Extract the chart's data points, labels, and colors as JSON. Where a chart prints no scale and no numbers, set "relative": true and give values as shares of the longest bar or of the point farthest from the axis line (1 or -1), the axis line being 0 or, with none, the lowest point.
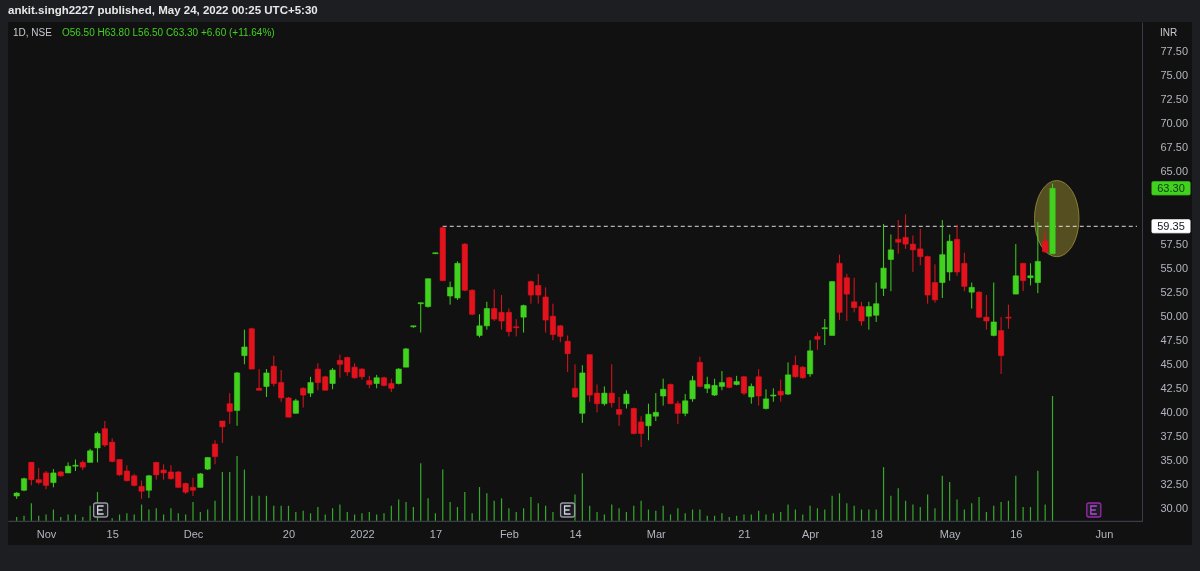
{
  "chart_data": [
    {
      "type": "candlestick",
      "title": "ankit.singh2227 published, May 24, 2022 00:25 UTC+5:30",
      "subtitle": "1D, NSE",
      "ylabel": "INR",
      "annotations": [
        "O56.50 H63.80 L56.50 C63.30 +6.60 (+11.64%)",
        "63.30"
      ],
      "categories": [
        null,
        null,
        null,
        null,
        "Nov",
        null,
        null,
        null,
        null,
        null,
        null,
        null,
        null,
        "15",
        null,
        null,
        null,
        null,
        null,
        null,
        null,
        null,
        null,
        null,
        "Dec",
        null,
        null,
        null,
        null,
        null,
        null,
        null,
        null,
        null,
        null,
        null,
        null,
        "20",
        null,
        null,
        null,
        null,
        null,
        null,
        null,
        null,
        null,
        "2022",
        null,
        null,
        null,
        null,
        null,
        null,
        null,
        null,
        null,
        "17",
        null,
        null,
        null,
        null,
        null,
        null,
        null,
        null,
        null,
        "Feb",
        null,
        null,
        null,
        null,
        null,
        null,
        null,
        null,
        "14",
        null,
        null,
        null,
        null,
        null,
        null,
        null,
        null,
        null,
        null,
        "Mar",
        null,
        null,
        null,
        null,
        null,
        null,
        null,
        null,
        null,
        null,
        null,
        "21",
        null,
        null,
        null,
        null,
        null,
        null,
        null,
        null,
        "Apr",
        null,
        null,
        null,
        null,
        null,
        null,
        null,
        null,
        "18",
        null,
        null,
        null,
        null,
        null,
        null,
        null,
        null,
        null,
        "May",
        null,
        null,
        null,
        null,
        null,
        null,
        null,
        null,
        "16",
        null,
        null,
        null,
        null,
        null,
        null,
        null,
        null,
        null,
        null,
        null,
        "Jun",
        null,
        null,
        null,
        null
      ],
      "ohlc": [
        [
          31.3,
          31.7,
          31.0,
          31.6
        ],
        [
          31.9,
          33.2,
          31.8,
          33.1
        ],
        [
          34.8,
          34.8,
          32.4,
          33.0
        ],
        [
          33.0,
          34.2,
          32.5,
          32.7
        ],
        [
          33.7,
          33.9,
          32.0,
          32.4
        ],
        [
          32.7,
          34.1,
          32.2,
          33.7
        ],
        [
          33.8,
          33.9,
          33.3,
          33.4
        ],
        [
          33.7,
          34.8,
          33.7,
          34.4
        ],
        [
          34.4,
          35.1,
          33.9,
          34.5
        ],
        [
          34.8,
          35.0,
          34.0,
          34.3
        ],
        [
          34.8,
          36.2,
          34.8,
          36.0
        ],
        [
          36.3,
          38.0,
          34.8,
          37.8
        ],
        [
          38.3,
          39.1,
          36.4,
          36.6
        ],
        [
          36.9,
          37.3,
          34.8,
          34.9
        ],
        [
          35.1,
          35.1,
          33.4,
          33.5
        ],
        [
          33.9,
          34.5,
          32.8,
          32.9
        ],
        [
          33.4,
          33.6,
          32.3,
          32.4
        ],
        [
          32.3,
          32.9,
          31.0,
          31.8
        ],
        [
          31.9,
          33.5,
          31.1,
          33.4
        ],
        [
          34.8,
          34.8,
          33.0,
          33.5
        ],
        [
          34.0,
          34.6,
          33.0,
          33.7
        ],
        [
          33.8,
          34.5,
          33.0,
          33.1
        ],
        [
          33.8,
          33.9,
          32.2,
          32.2
        ],
        [
          32.6,
          32.7,
          31.5,
          31.7
        ],
        [
          32.2,
          33.2,
          31.3,
          31.9
        ],
        [
          32.2,
          33.7,
          32.2,
          33.6
        ],
        [
          34.1,
          35.3,
          34.0,
          35.3
        ],
        [
          36.7,
          37.1,
          34.6,
          35.4
        ],
        [
          39.1,
          39.1,
          36.8,
          38.5
        ],
        [
          40.9,
          42.0,
          38.8,
          40.1
        ],
        [
          40.2,
          44.2,
          38.6,
          44.1
        ],
        [
          45.9,
          48.6,
          45.0,
          46.8
        ],
        [
          48.7,
          48.8,
          44.5,
          44.5
        ],
        [
          42.5,
          44.5,
          42.3,
          42.3
        ],
        [
          42.7,
          44.5,
          41.6,
          44.1
        ],
        [
          44.8,
          45.9,
          42.7,
          43.0
        ],
        [
          43.1,
          44.4,
          41.1,
          41.5
        ],
        [
          41.5,
          41.6,
          39.5,
          39.5
        ],
        [
          39.9,
          41.4,
          39.9,
          41.2
        ],
        [
          42.5,
          42.6,
          40.5,
          41.8
        ],
        [
          42.0,
          43.7,
          41.6,
          43.1
        ],
        [
          44.5,
          45.1,
          42.3,
          43.1
        ],
        [
          43.7,
          43.8,
          42.3,
          42.3
        ],
        [
          43.0,
          44.6,
          42.4,
          44.4
        ],
        [
          45.4,
          46.0,
          43.6,
          45.0
        ],
        [
          45.7,
          45.8,
          43.8,
          44.2
        ],
        [
          44.7,
          45.1,
          43.5,
          43.6
        ],
        [
          44.5,
          44.6,
          43.4,
          43.7
        ],
        [
          43.3,
          43.8,
          42.5,
          42.9
        ],
        [
          43.0,
          43.9,
          42.5,
          43.6
        ],
        [
          43.6,
          43.7,
          42.7,
          42.8
        ],
        [
          43.0,
          43.5,
          42.1,
          42.5
        ],
        [
          43.0,
          44.6,
          42.9,
          44.5
        ],
        [
          44.7,
          46.7,
          44.7,
          46.6
        ],
        [
          48.9,
          49.0,
          48.8,
          49.0
        ],
        [
          51.3,
          51.4,
          48.3,
          51.4
        ],
        [
          51.0,
          53.9,
          50.9,
          53.9
        ],
        [
          56.5,
          56.6,
          56.5,
          56.6
        ],
        [
          59.2,
          59.35,
          53.7,
          53.7
        ],
        [
          52.1,
          53.6,
          51.2,
          53.0
        ],
        [
          51.9,
          55.7,
          51.7,
          55.5
        ],
        [
          57.5,
          57.6,
          52.6,
          52.7
        ],
        [
          52.7,
          52.8,
          50.1,
          50.2
        ],
        [
          48.0,
          50.2,
          47.8,
          49.0
        ],
        [
          49.0,
          51.5,
          48.6,
          50.8
        ],
        [
          50.8,
          52.8,
          49.5,
          49.7
        ],
        [
          50.4,
          52.2,
          48.6,
          49.5
        ],
        [
          50.4,
          50.8,
          47.9,
          48.4
        ],
        [
          48.9,
          49.7,
          47.9,
          48.8
        ],
        [
          49.9,
          51.2,
          48.3,
          51.1
        ],
        [
          53.6,
          53.7,
          51.3,
          52.2
        ],
        [
          53.2,
          54.4,
          51.3,
          52.2
        ],
        [
          52.0,
          53.0,
          48.3,
          49.6
        ],
        [
          50.0,
          51.3,
          47.5,
          48.1
        ],
        [
          49.0,
          49.1,
          47.3,
          47.9
        ],
        [
          47.4,
          48.0,
          44.2,
          46.1
        ],
        [
          42.5,
          45.0,
          41.5,
          41.6
        ],
        [
          39.9,
          44.9,
          38.9,
          44.1
        ],
        [
          46.0,
          46.0,
          41.1,
          41.8
        ],
        [
          42.0,
          42.9,
          40.0,
          40.9
        ],
        [
          40.9,
          42.7,
          40.7,
          42.0
        ],
        [
          42.0,
          45.0,
          40.5,
          41.0
        ],
        [
          40.3,
          41.6,
          38.6,
          39.8
        ],
        [
          40.9,
          42.3,
          40.4,
          41.9
        ],
        [
          40.4,
          40.5,
          37.7,
          37.8
        ],
        [
          39.0,
          39.6,
          36.4,
          37.8
        ],
        [
          38.6,
          40.9,
          37.1,
          39.8
        ],
        [
          39.6,
          42.0,
          39.1,
          40.0
        ],
        [
          41.7,
          43.5,
          40.7,
          42.4
        ],
        [
          42.9,
          43.0,
          40.9,
          40.9
        ],
        [
          40.9,
          41.2,
          38.8,
          39.9
        ],
        [
          39.9,
          41.9,
          39.6,
          41.2
        ],
        [
          41.4,
          43.8,
          41.1,
          43.3
        ],
        [
          45.2,
          45.8,
          42.6,
          42.7
        ],
        [
          42.5,
          43.7,
          42.0,
          42.9
        ],
        [
          41.8,
          43.5,
          41.7,
          42.8
        ],
        [
          42.7,
          44.3,
          42.3,
          43.1
        ],
        [
          43.6,
          43.7,
          42.5,
          42.6
        ],
        [
          42.9,
          43.8,
          42.8,
          43.2
        ],
        [
          43.7,
          43.8,
          41.8,
          42.0
        ],
        [
          41.6,
          43.0,
          40.9,
          42.7
        ],
        [
          43.7,
          44.5,
          40.7,
          41.7
        ],
        [
          40.4,
          42.4,
          40.3,
          41.4
        ],
        [
          41.7,
          42.5,
          41.1,
          41.8
        ],
        [
          42.2,
          43.4,
          41.1,
          41.8
        ],
        [
          41.9,
          45.2,
          41.8,
          43.9
        ],
        [
          44.9,
          45.9,
          43.6,
          43.7
        ],
        [
          44.7,
          44.8,
          43.5,
          43.6
        ],
        [
          44.0,
          47.5,
          43.7,
          46.4
        ],
        [
          47.9,
          48.3,
          46.5,
          47.6
        ],
        [
          48.7,
          49.7,
          47.0,
          48.8
        ],
        [
          48.0,
          53.6,
          48.0,
          53.6
        ],
        [
          55.5,
          56.4,
          49.6,
          50.4
        ],
        [
          54.0,
          54.4,
          49.5,
          52.3
        ],
        [
          51.5,
          54.0,
          50.4,
          50.9
        ],
        [
          51.0,
          51.5,
          49.0,
          49.5
        ],
        [
          50.0,
          51.5,
          48.6,
          51.0
        ],
        [
          50.1,
          53.5,
          49.4,
          51.3
        ],
        [
          52.9,
          59.6,
          52.1,
          55.0
        ],
        [
          55.9,
          58.5,
          52.6,
          56.9
        ],
        [
          58.0,
          60.0,
          56.5,
          57.7
        ],
        [
          58.2,
          60.6,
          57.0,
          57.5
        ],
        [
          57.5,
          58.4,
          54.6,
          56.9
        ],
        [
          57.0,
          59.1,
          55.3,
          56.2
        ],
        [
          56.2,
          56.3,
          51.3,
          52.2
        ],
        [
          53.5,
          55.4,
          51.4,
          51.7
        ],
        [
          53.5,
          60.0,
          51.9,
          56.4
        ],
        [
          54.6,
          58.5,
          53.7,
          57.8
        ],
        [
          58.0,
          59.5,
          54.2,
          54.6
        ],
        [
          55.5,
          56.6,
          52.6,
          53.1
        ],
        [
          52.5,
          53.5,
          50.8,
          53.0
        ],
        [
          52.5,
          52.6,
          49.8,
          49.9
        ],
        [
          49.9,
          52.2,
          48.6,
          49.5
        ],
        [
          48.0,
          53.5,
          47.9,
          49.4
        ],
        [
          48.5,
          49.9,
          44.0,
          45.9
        ],
        [
          49.9,
          51.2,
          48.7,
          49.8
        ],
        [
          52.3,
          57.5,
          52.3,
          54.2
        ],
        [
          55.5,
          55.5,
          52.6,
          53.7
        ],
        [
          54.0,
          55.5,
          53.2,
          54.2
        ],
        [
          53.5,
          59.8,
          52.4,
          55.7
        ],
        [
          57.8,
          58.8,
          56.6,
          56.7
        ],
        [
          56.5,
          63.8,
          56.5,
          63.3
        ],
        null,
        null,
        null,
        null,
        null,
        null,
        null,
        null,
        null,
        null,
        null
      ],
      "colors": [
        "#41d11f",
        "#41d11f",
        "#e3131e",
        "#e3131e",
        "#e3131e",
        "#41d11f",
        "#e3131e",
        "#41d11f",
        "#41d11f",
        "#e3131e",
        "#41d11f",
        "#41d11f",
        "#e3131e",
        "#e3131e",
        "#e3131e",
        "#e3131e",
        "#e3131e",
        "#e3131e",
        "#41d11f",
        "#e3131e",
        "#e3131e",
        "#e3131e",
        "#e3131e",
        "#e3131e",
        "#e3131e",
        "#41d11f",
        "#41d11f",
        "#e3131e",
        "#e3131e",
        "#e3131e",
        "#41d11f",
        "#41d11f",
        "#e3131e",
        "#e3131e",
        "#41d11f",
        "#e3131e",
        "#e3131e",
        "#e3131e",
        "#41d11f",
        "#e3131e",
        "#41d11f",
        "#e3131e",
        "#e3131e",
        "#41d11f",
        "#e3131e",
        "#e3131e",
        "#e3131e",
        "#e3131e",
        "#e3131e",
        "#41d11f",
        "#e3131e",
        "#e3131e",
        "#41d11f",
        "#41d11f",
        "#41d11f",
        "#41d11f",
        "#41d11f",
        "#41d11f",
        "#e3131e",
        "#41d11f",
        "#41d11f",
        "#e3131e",
        "#e3131e",
        "#41d11f",
        "#41d11f",
        "#e3131e",
        "#e3131e",
        "#e3131e",
        "#e3131e",
        "#41d11f",
        "#e3131e",
        "#e3131e",
        "#e3131e",
        "#e3131e",
        "#e3131e",
        "#e3131e",
        "#e3131e",
        "#41d11f",
        "#e3131e",
        "#e3131e",
        "#41d11f",
        "#e3131e",
        "#e3131e",
        "#41d11f",
        "#e3131e",
        "#e3131e",
        "#41d11f",
        "#41d11f",
        "#41d11f",
        "#e3131e",
        "#e3131e",
        "#41d11f",
        "#41d11f",
        "#e3131e",
        "#41d11f",
        "#41d11f",
        "#41d11f",
        "#e3131e",
        "#41d11f",
        "#e3131e",
        "#41d11f",
        "#e3131e",
        "#41d11f",
        "#41d11f",
        "#e3131e",
        "#41d11f",
        "#e3131e",
        "#e3131e",
        "#41d11f",
        "#e3131e",
        "#41d11f",
        "#41d11f",
        "#e3131e",
        "#e3131e",
        "#e3131e",
        "#e3131e",
        "#41d11f",
        "#41d11f",
        "#41d11f",
        "#41d11f",
        "#e3131e",
        "#e3131e",
        "#e3131e",
        "#e3131e",
        "#e3131e",
        "#e3131e",
        "#41d11f",
        "#41d11f",
        "#e3131e",
        "#e3131e",
        "#41d11f",
        "#e3131e",
        "#e3131e",
        "#41d11f",
        "#e3131e",
        "#e3131e",
        "#41d11f",
        "#e3131e",
        "#41d11f",
        "#41d11f",
        "#e3131e",
        "#41d11f",
        null,
        null,
        null,
        null,
        null,
        null,
        null,
        null,
        null,
        null,
        null
      ],
      "ylim": [
        28.7,
        80.6
      ],
      "yticks": [
        {
          "value": 30,
          "label": "30.00"
        },
        {
          "value": 32.5,
          "label": "32.50"
        },
        {
          "value": 35,
          "label": "35.00"
        },
        {
          "value": 37.5,
          "label": "37.50"
        },
        {
          "value": 40,
          "label": "40.00"
        },
        {
          "value": 42.5,
          "label": "42.50"
        },
        {
          "value": 45,
          "label": "45.00"
        },
        {
          "value": 47.5,
          "label": "47.50"
        },
        {
          "value": 50,
          "label": "50.00"
        },
        {
          "value": 52.5,
          "label": "52.50"
        },
        {
          "value": 55,
          "label": "55.00"
        },
        {
          "value": 57.5,
          "label": "57.50"
        },
        {
          "value": 65,
          "label": "65.00"
        },
        {
          "value": 67.5,
          "label": "67.50"
        },
        {
          "value": 70,
          "label": "70.00"
        },
        {
          "value": 72.5,
          "label": "72.50"
        },
        {
          "value": 75,
          "label": "75.00"
        },
        {
          "value": 77.5,
          "label": "77.50"
        }
      ],
      "ref_lines": [
        {
          "axis": "y",
          "value": 59.35,
          "label": "59.35",
          "color": "#ffffff",
          "line_style": "dashed"
        }
      ]
    },
    {
      "type": "bar",
      "relative": true,
      "color": "#36a92c",
      "categories": [
        null,
        null,
        null,
        null,
        null,
        null,
        null,
        null,
        null,
        null,
        null,
        null,
        null,
        null,
        null,
        null,
        null,
        null,
        null,
        null,
        null,
        null,
        null,
        null,
        null,
        null,
        null,
        null,
        null,
        null,
        null,
        null,
        null,
        null,
        null,
        null,
        null,
        null,
        null,
        null,
        null,
        null,
        null,
        null,
        null,
        null,
        null,
        null,
        null,
        null,
        null,
        null,
        null,
        null,
        null,
        null,
        null,
        null,
        null,
        null,
        null,
        null,
        null,
        null,
        null,
        null,
        null,
        null,
        null,
        null,
        null,
        null,
        null,
        null,
        null,
        null,
        null,
        null,
        null,
        null,
        null,
        null,
        null,
        null,
        null,
        null,
        null,
        null,
        null,
        null,
        null,
        null,
        null,
        null,
        null,
        null,
        null,
        null,
        null,
        null,
        null,
        null,
        null,
        null,
        null,
        null,
        null,
        null,
        null,
        null,
        null,
        null,
        null,
        null,
        null,
        null,
        null,
        null,
        null,
        null,
        null,
        null,
        null,
        null,
        null,
        null,
        null,
        null,
        null,
        null,
        null,
        null,
        null,
        null,
        null,
        null,
        null,
        null,
        null,
        null,
        null,
        null,
        null,
        null,
        null,
        null,
        null,
        null,
        null,
        null,
        null,
        null,
        null
      ],
      "values": [
        0.03,
        0.04,
        0.14,
        0.04,
        0.05,
        0.09,
        0.03,
        0.05,
        0.05,
        0.03,
        0.12,
        0.23,
        null,
        0.02,
        0.05,
        0.06,
        0.05,
        0.13,
        0.09,
        0.1,
        0.05,
        0.1,
        0.06,
        0.05,
        0.15,
        0.07,
        0.09,
        0.16,
        0.39,
        0.39,
        0.52,
        0.41,
        0.2,
        0.2,
        0.2,
        0.12,
        0.12,
        0.12,
        0.07,
        0.08,
        0.06,
        0.11,
        0.05,
        0.1,
        0.13,
        0.07,
        0.05,
        0.06,
        0.07,
        0.05,
        0.06,
        0.12,
        0.17,
        0.15,
        0.11,
        0.46,
        0.18,
        0.06,
        0.41,
        0.15,
        0.11,
        0.23,
        0.06,
        0.27,
        0.22,
        0.16,
        0.18,
        0.1,
        0.07,
        0.1,
        0.19,
        0.14,
        0.12,
        0.07,
        null,
        null,
        0.21,
        0.38,
        0.12,
        0.07,
        0.05,
        0.13,
        0.1,
        0.07,
        0.12,
        0.16,
        0.09,
        0.08,
        0.12,
        0.05,
        0.1,
        0.06,
        0.09,
        0.09,
        0.04,
        0.04,
        0.06,
        0.03,
        0.04,
        0.05,
        0.05,
        0.08,
        0.05,
        0.06,
        0.07,
        0.13,
        0.09,
        0.05,
        0.12,
        0.1,
        0.09,
        0.2,
        0.22,
        0.14,
        0.12,
        0.09,
        0.09,
        0.09,
        0.43,
        0.2,
        0.26,
        0.16,
        0.13,
        0.11,
        0.21,
        0.1,
        0.36,
        0.31,
        0.17,
        0.09,
        0.14,
        0.19,
        0.07,
        0.12,
        0.15,
        0.16,
        0.36,
        0.11,
        0.11,
        0.4,
        0.13,
        1,
        null,
        null,
        null,
        null,
        null,
        null,
        null,
        null,
        null,
        null,
        null
      ]
    }
  ]
}
